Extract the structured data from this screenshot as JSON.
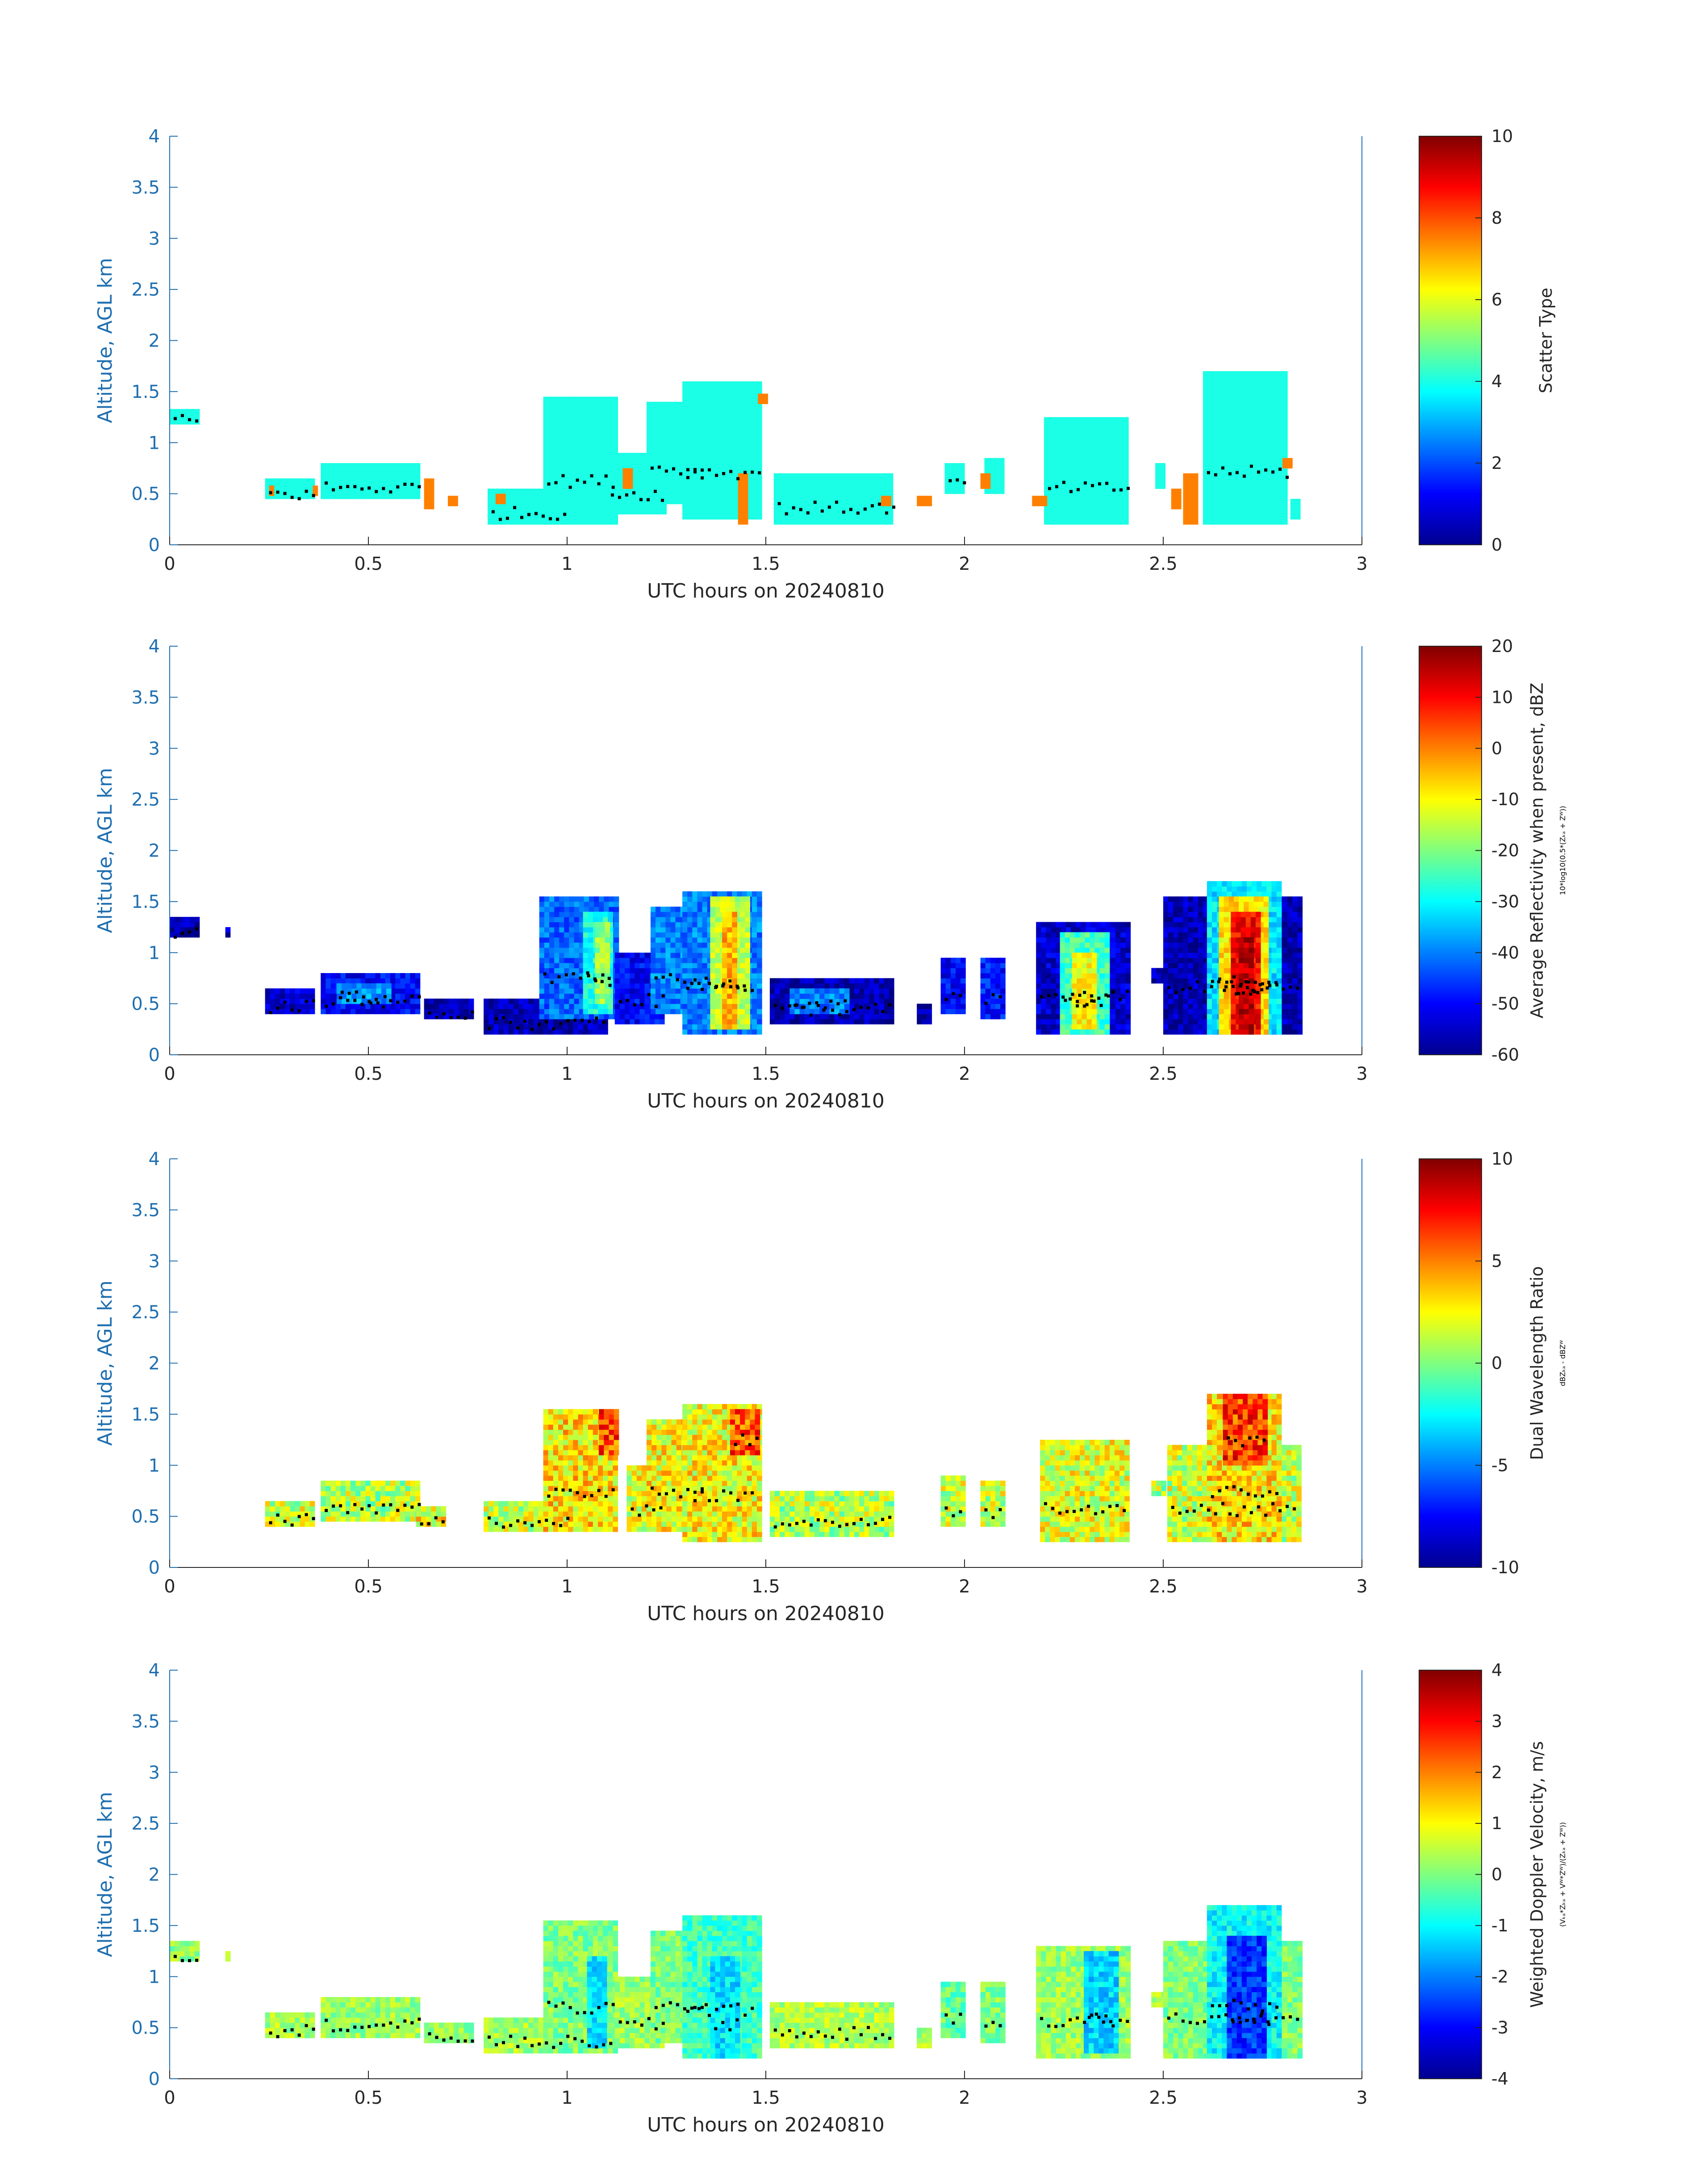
{
  "chart_data": [
    {
      "type": "heatmap",
      "panel": 1,
      "xlabel": "UTC hours on 20240810",
      "ylabel": "Altitude, AGL km",
      "xlim": [
        0,
        3
      ],
      "ylim": [
        0,
        4
      ],
      "xticks": [
        "0",
        "0.5",
        "1",
        "1.5",
        "2",
        "2.5",
        "3"
      ],
      "yticks": [
        "0",
        "0.5",
        "1",
        "1.5",
        "2",
        "2.5",
        "3",
        "3.5",
        "4"
      ],
      "colorbar": {
        "label": "Scatter Type",
        "label2": "",
        "range": [
          0,
          10
        ],
        "ticks": [
          "0",
          "2",
          "4",
          "6",
          "8",
          "10"
        ]
      },
      "clusters": [
        {
          "x0": 0.0,
          "x1": 0.07,
          "y0": 1.18,
          "y1": 1.32,
          "v": 4
        },
        {
          "x0": 0.24,
          "x1": 0.36,
          "y0": 0.45,
          "y1": 0.62,
          "v": 4
        },
        {
          "x0": 0.38,
          "x1": 0.63,
          "y0": 0.45,
          "y1": 0.8,
          "v": 4
        },
        {
          "x0": 0.8,
          "x1": 1.0,
          "y0": 0.2,
          "y1": 0.55,
          "v": 4
        },
        {
          "x0": 0.94,
          "x1": 1.12,
          "y0": 0.2,
          "y1": 1.45,
          "v": 4
        },
        {
          "x0": 1.1,
          "x1": 1.24,
          "y0": 0.3,
          "y1": 0.9,
          "v": 4
        },
        {
          "x0": 1.2,
          "x1": 1.35,
          "y0": 0.4,
          "y1": 1.4,
          "v": 4
        },
        {
          "x0": 1.29,
          "x1": 1.49,
          "y0": 0.25,
          "y1": 1.6,
          "v": 4
        },
        {
          "x0": 1.52,
          "x1": 1.82,
          "y0": 0.2,
          "y1": 0.7,
          "v": 4
        },
        {
          "x0": 1.95,
          "x1": 2.0,
          "y0": 0.5,
          "y1": 0.8,
          "v": 4
        },
        {
          "x0": 2.05,
          "x1": 2.09,
          "y0": 0.5,
          "y1": 0.85,
          "v": 4
        },
        {
          "x0": 2.2,
          "x1": 2.41,
          "y0": 0.2,
          "y1": 1.25,
          "v": 4
        },
        {
          "x0": 2.48,
          "x1": 2.5,
          "y0": 0.55,
          "y1": 0.8,
          "v": 4
        },
        {
          "x0": 2.6,
          "x1": 2.81,
          "y0": 0.2,
          "y1": 1.7,
          "v": 4
        },
        {
          "x0": 2.82,
          "x1": 2.84,
          "y0": 0.25,
          "y1": 0.45,
          "v": 4
        },
        {
          "x0": 0.25,
          "x1": 0.26,
          "y0": 0.48,
          "y1": 0.58,
          "v": 7.5
        },
        {
          "x0": 0.36,
          "x1": 0.37,
          "y0": 0.48,
          "y1": 0.58,
          "v": 7.5
        },
        {
          "x0": 0.64,
          "x1": 0.66,
          "y0": 0.35,
          "y1": 0.65,
          "v": 7.5
        },
        {
          "x0": 0.7,
          "x1": 0.72,
          "y0": 0.38,
          "y1": 0.48,
          "v": 7.5
        },
        {
          "x0": 0.82,
          "x1": 0.84,
          "y0": 0.4,
          "y1": 0.5,
          "v": 7.5
        },
        {
          "x0": 1.14,
          "x1": 1.16,
          "y0": 0.55,
          "y1": 0.75,
          "v": 7.5
        },
        {
          "x0": 1.43,
          "x1": 1.45,
          "y0": 0.2,
          "y1": 0.7,
          "v": 7.5
        },
        {
          "x0": 1.48,
          "x1": 1.5,
          "y0": 1.38,
          "y1": 1.48,
          "v": 7.5
        },
        {
          "x0": 1.79,
          "x1": 1.81,
          "y0": 0.38,
          "y1": 0.48,
          "v": 7.5
        },
        {
          "x0": 1.88,
          "x1": 1.91,
          "y0": 0.38,
          "y1": 0.48,
          "v": 7.5
        },
        {
          "x0": 2.04,
          "x1": 2.06,
          "y0": 0.55,
          "y1": 0.7,
          "v": 7.5
        },
        {
          "x0": 2.17,
          "x1": 2.2,
          "y0": 0.38,
          "y1": 0.48,
          "v": 7.5
        },
        {
          "x0": 2.52,
          "x1": 2.54,
          "y0": 0.35,
          "y1": 0.55,
          "v": 7.5
        },
        {
          "x0": 2.55,
          "x1": 2.58,
          "y0": 0.2,
          "y1": 0.7,
          "v": 7.5
        },
        {
          "x0": 2.8,
          "x1": 2.82,
          "y0": 0.75,
          "y1": 0.85,
          "v": 7.5
        }
      ]
    },
    {
      "type": "heatmap",
      "panel": 2,
      "xlabel": "UTC hours on 20240810",
      "ylabel": "Altitude, AGL km",
      "xlim": [
        0,
        3
      ],
      "ylim": [
        0,
        4
      ],
      "xticks": [
        "0",
        "0.5",
        "1",
        "1.5",
        "2",
        "2.5",
        "3"
      ],
      "yticks": [
        "0",
        "0.5",
        "1",
        "1.5",
        "2",
        "2.5",
        "3",
        "3.5",
        "4"
      ],
      "colorbar": {
        "label": "Average Reflectivity when present, dBZ",
        "label2": "10*log10(0.5*(Zₖₐ + Zᵂ))",
        "range": [
          -60,
          20
        ],
        "ticks": [
          "-60",
          "-50",
          "-40",
          "-30",
          "-20",
          "-10",
          "0",
          "10",
          "20"
        ]
      },
      "clusters": [
        {
          "x0": 0.0,
          "x1": 0.07,
          "y0": 1.15,
          "y1": 1.35,
          "v": -56
        },
        {
          "x0": 0.14,
          "x1": 0.15,
          "y0": 1.15,
          "y1": 1.25,
          "v": -56
        },
        {
          "x0": 0.24,
          "x1": 0.36,
          "y0": 0.4,
          "y1": 0.65,
          "v": -54
        },
        {
          "x0": 0.38,
          "x1": 0.63,
          "y0": 0.4,
          "y1": 0.8,
          "v": -50
        },
        {
          "x0": 0.42,
          "x1": 0.55,
          "y0": 0.5,
          "y1": 0.7,
          "v": -38
        },
        {
          "x0": 0.64,
          "x1": 0.76,
          "y0": 0.35,
          "y1": 0.55,
          "v": -56
        },
        {
          "x0": 0.79,
          "x1": 1.1,
          "y0": 0.2,
          "y1": 0.55,
          "v": -56
        },
        {
          "x0": 0.93,
          "x1": 1.12,
          "y0": 0.35,
          "y1": 1.55,
          "v": -42
        },
        {
          "x0": 1.04,
          "x1": 1.11,
          "y0": 0.4,
          "y1": 1.4,
          "v": -28
        },
        {
          "x0": 1.07,
          "x1": 1.1,
          "y0": 0.5,
          "y1": 1.3,
          "v": -18
        },
        {
          "x0": 1.12,
          "x1": 1.24,
          "y0": 0.3,
          "y1": 1.0,
          "v": -50
        },
        {
          "x0": 1.21,
          "x1": 1.35,
          "y0": 0.4,
          "y1": 1.45,
          "v": -40
        },
        {
          "x0": 1.29,
          "x1": 1.48,
          "y0": 0.2,
          "y1": 1.6,
          "v": -40
        },
        {
          "x0": 1.36,
          "x1": 1.45,
          "y0": 0.25,
          "y1": 1.55,
          "v": -15
        },
        {
          "x0": 1.39,
          "x1": 1.42,
          "y0": 0.25,
          "y1": 1.4,
          "v": -4
        },
        {
          "x0": 1.51,
          "x1": 1.82,
          "y0": 0.3,
          "y1": 0.75,
          "v": -56
        },
        {
          "x0": 1.56,
          "x1": 1.7,
          "y0": 0.4,
          "y1": 0.65,
          "v": -40
        },
        {
          "x0": 1.88,
          "x1": 1.91,
          "y0": 0.3,
          "y1": 0.5,
          "v": -58
        },
        {
          "x0": 1.94,
          "x1": 2.0,
          "y0": 0.4,
          "y1": 0.95,
          "v": -50
        },
        {
          "x0": 2.04,
          "x1": 2.1,
          "y0": 0.35,
          "y1": 0.95,
          "v": -48
        },
        {
          "x0": 2.18,
          "x1": 2.41,
          "y0": 0.2,
          "y1": 1.3,
          "v": -54
        },
        {
          "x0": 2.24,
          "x1": 2.36,
          "y0": 0.2,
          "y1": 1.2,
          "v": -25
        },
        {
          "x0": 2.27,
          "x1": 2.33,
          "y0": 0.25,
          "y1": 1.0,
          "v": -10
        },
        {
          "x0": 2.47,
          "x1": 2.51,
          "y0": 0.7,
          "y1": 0.85,
          "v": -56
        },
        {
          "x0": 2.5,
          "x1": 2.84,
          "y0": 0.2,
          "y1": 1.55,
          "v": -56
        },
        {
          "x0": 2.61,
          "x1": 2.79,
          "y0": 0.2,
          "y1": 1.7,
          "v": -32
        },
        {
          "x0": 2.64,
          "x1": 2.76,
          "y0": 0.2,
          "y1": 1.55,
          "v": -8
        },
        {
          "x0": 2.67,
          "x1": 2.74,
          "y0": 0.2,
          "y1": 1.4,
          "v": 10
        },
        {
          "x0": 2.69,
          "x1": 2.72,
          "y0": 0.2,
          "y1": 1.15,
          "v": 16
        }
      ]
    },
    {
      "type": "heatmap",
      "panel": 3,
      "xlabel": "UTC hours on 20240810",
      "ylabel": "Altitude, AGL km",
      "xlim": [
        0,
        3
      ],
      "ylim": [
        0,
        4
      ],
      "xticks": [
        "0",
        "0.5",
        "1",
        "1.5",
        "2",
        "2.5",
        "3"
      ],
      "yticks": [
        "0",
        "0.5",
        "1",
        "1.5",
        "2",
        "2.5",
        "3",
        "3.5",
        "4"
      ],
      "colorbar": {
        "label": "Dual Wavelength Ratio",
        "label2": "dBZₖₐ - dBZᵂ",
        "range": [
          -10,
          10
        ],
        "ticks": [
          "-10",
          "-5",
          "0",
          "5",
          "10"
        ]
      },
      "clusters": [
        {
          "x0": 0.24,
          "x1": 0.36,
          "y0": 0.4,
          "y1": 0.65,
          "v": 1.5
        },
        {
          "x0": 0.38,
          "x1": 0.63,
          "y0": 0.45,
          "y1": 0.85,
          "v": 1.0
        },
        {
          "x0": 0.62,
          "x1": 0.69,
          "y0": 0.4,
          "y1": 0.6,
          "v": 2.5
        },
        {
          "x0": 0.79,
          "x1": 1.0,
          "y0": 0.35,
          "y1": 0.65,
          "v": 1.5
        },
        {
          "x0": 0.94,
          "x1": 1.12,
          "y0": 0.35,
          "y1": 1.55,
          "v": 3.0
        },
        {
          "x0": 1.08,
          "x1": 1.12,
          "y0": 1.1,
          "y1": 1.55,
          "v": 6.0
        },
        {
          "x0": 1.15,
          "x1": 1.24,
          "y0": 0.35,
          "y1": 1.0,
          "v": 2.0
        },
        {
          "x0": 1.2,
          "x1": 1.35,
          "y0": 0.35,
          "y1": 1.45,
          "v": 2.5
        },
        {
          "x0": 1.29,
          "x1": 1.48,
          "y0": 0.25,
          "y1": 1.6,
          "v": 2.5
        },
        {
          "x0": 1.41,
          "x1": 1.48,
          "y0": 1.1,
          "y1": 1.55,
          "v": 6.0
        },
        {
          "x0": 1.51,
          "x1": 1.82,
          "y0": 0.3,
          "y1": 0.75,
          "v": 1.0
        },
        {
          "x0": 1.94,
          "x1": 2.0,
          "y0": 0.4,
          "y1": 0.9,
          "v": 1.5
        },
        {
          "x0": 2.04,
          "x1": 2.1,
          "y0": 0.4,
          "y1": 0.85,
          "v": 1.5
        },
        {
          "x0": 2.19,
          "x1": 2.41,
          "y0": 0.25,
          "y1": 1.25,
          "v": 2.0
        },
        {
          "x0": 2.47,
          "x1": 2.5,
          "y0": 0.7,
          "y1": 0.82,
          "v": 1.0
        },
        {
          "x0": 2.51,
          "x1": 2.84,
          "y0": 0.25,
          "y1": 1.2,
          "v": 1.5
        },
        {
          "x0": 2.61,
          "x1": 2.79,
          "y0": 0.25,
          "y1": 1.7,
          "v": 3.0
        },
        {
          "x0": 2.65,
          "x1": 2.76,
          "y0": 1.0,
          "y1": 1.7,
          "v": 6.5
        }
      ]
    },
    {
      "type": "heatmap",
      "panel": 4,
      "xlabel": "UTC hours on 20240810",
      "ylabel": "Altitude, AGL km",
      "xlim": [
        0,
        3
      ],
      "ylim": [
        0,
        4
      ],
      "xticks": [
        "0",
        "0.5",
        "1",
        "1.5",
        "2",
        "2.5",
        "3"
      ],
      "yticks": [
        "0",
        "0.5",
        "1",
        "1.5",
        "2",
        "2.5",
        "3",
        "3.5",
        "4"
      ],
      "colorbar": {
        "label": "Weighted Doppler Velocity, m/s",
        "label2": "(Vₖₐ*Zₖₐ + Vᵂ*Zᵂ)/(Zₖₐ + Zᵂ))",
        "range": [
          -4,
          4
        ],
        "ticks": [
          "-4",
          "-3",
          "-2",
          "-1",
          "0",
          "1",
          "2",
          "3",
          "4"
        ]
      },
      "clusters": [
        {
          "x0": 0.0,
          "x1": 0.07,
          "y0": 1.15,
          "y1": 1.35,
          "v": 0.2
        },
        {
          "x0": 0.14,
          "x1": 0.15,
          "y0": 1.15,
          "y1": 1.25,
          "v": 0.2
        },
        {
          "x0": 0.24,
          "x1": 0.36,
          "y0": 0.4,
          "y1": 0.65,
          "v": 0.3
        },
        {
          "x0": 0.38,
          "x1": 0.63,
          "y0": 0.4,
          "y1": 0.8,
          "v": 0.2
        },
        {
          "x0": 0.64,
          "x1": 0.76,
          "y0": 0.35,
          "y1": 0.55,
          "v": 0.1
        },
        {
          "x0": 0.79,
          "x1": 1.12,
          "y0": 0.25,
          "y1": 0.6,
          "v": 0.3
        },
        {
          "x0": 0.94,
          "x1": 1.12,
          "y0": 0.25,
          "y1": 1.55,
          "v": 0.0
        },
        {
          "x0": 1.05,
          "x1": 1.09,
          "y0": 0.3,
          "y1": 1.2,
          "v": -1.2
        },
        {
          "x0": 1.12,
          "x1": 1.24,
          "y0": 0.3,
          "y1": 1.0,
          "v": 0.2
        },
        {
          "x0": 1.21,
          "x1": 1.35,
          "y0": 0.35,
          "y1": 1.45,
          "v": 0.0
        },
        {
          "x0": 1.29,
          "x1": 1.48,
          "y0": 0.2,
          "y1": 1.6,
          "v": -0.5
        },
        {
          "x0": 1.36,
          "x1": 1.43,
          "y0": 0.2,
          "y1": 1.2,
          "v": -1.2
        },
        {
          "x0": 1.51,
          "x1": 1.82,
          "y0": 0.3,
          "y1": 0.75,
          "v": 0.4
        },
        {
          "x0": 1.88,
          "x1": 1.91,
          "y0": 0.3,
          "y1": 0.5,
          "v": 0.3
        },
        {
          "x0": 1.94,
          "x1": 2.0,
          "y0": 0.4,
          "y1": 0.95,
          "v": -0.2
        },
        {
          "x0": 2.04,
          "x1": 2.1,
          "y0": 0.35,
          "y1": 0.95,
          "v": 0.0
        },
        {
          "x0": 2.18,
          "x1": 2.41,
          "y0": 0.2,
          "y1": 1.3,
          "v": 0.2
        },
        {
          "x0": 2.3,
          "x1": 2.38,
          "y0": 0.25,
          "y1": 1.25,
          "v": -1.3
        },
        {
          "x0": 2.47,
          "x1": 2.51,
          "y0": 0.7,
          "y1": 0.85,
          "v": 0.3
        },
        {
          "x0": 2.5,
          "x1": 2.84,
          "y0": 0.2,
          "y1": 1.35,
          "v": 0.0
        },
        {
          "x0": 2.61,
          "x1": 2.79,
          "y0": 0.2,
          "y1": 1.7,
          "v": -1.0
        },
        {
          "x0": 2.66,
          "x1": 2.76,
          "y0": 0.2,
          "y1": 1.4,
          "v": -2.6
        }
      ]
    }
  ]
}
